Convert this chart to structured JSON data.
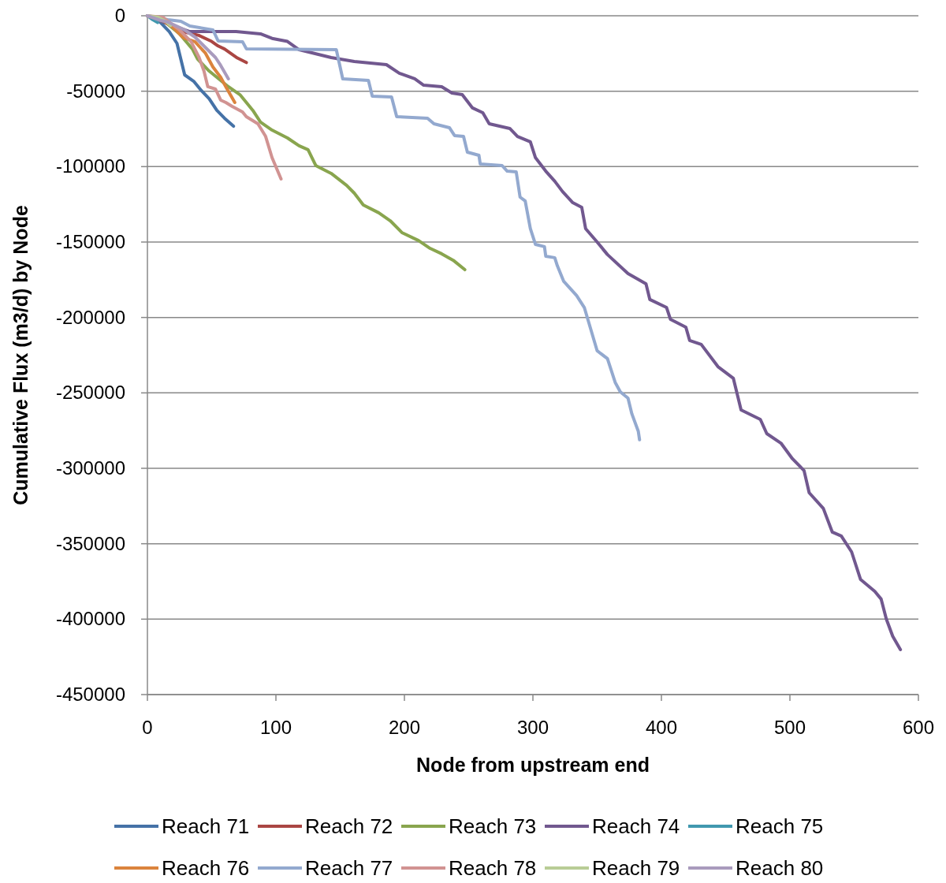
{
  "chart_data": {
    "type": "line",
    "xlabel": "Node from upstream end",
    "ylabel": "Cumulative Flux (m3/d) by Node",
    "xlim": [
      0,
      600
    ],
    "xticks": [
      0,
      100,
      200,
      300,
      400,
      500,
      600
    ],
    "ylim": [
      -450000,
      0
    ],
    "yticks": [
      -450000,
      -400000,
      -350000,
      -300000,
      -250000,
      -200000,
      -150000,
      -100000,
      -50000,
      0
    ],
    "grid": "y",
    "legend": "bottom",
    "marker": "none",
    "line_style": "solid",
    "series": [
      {
        "name": "Reach 71",
        "color": "#4572a7",
        "x": [
          0,
          8,
          17,
          23,
          26,
          29,
          36,
          42,
          48,
          54,
          60,
          67
        ],
        "values": [
          0,
          -2600,
          -10500,
          -18300,
          -28700,
          -39200,
          -43400,
          -49600,
          -54900,
          -62700,
          -67900,
          -73200
        ]
      },
      {
        "name": "Reach 72",
        "color": "#aa4643",
        "x": [
          0,
          10,
          20,
          30,
          40,
          50,
          55,
          60,
          65,
          70,
          77
        ],
        "values": [
          0,
          -3000,
          -7000,
          -11000,
          -13000,
          -17000,
          -20000,
          -22000,
          -25000,
          -28000,
          -31000
        ]
      },
      {
        "name": "Reach 73",
        "color": "#89a54e",
        "x": [
          0,
          15,
          25,
          35,
          39,
          48,
          63,
          72,
          82,
          88,
          97,
          109,
          118,
          125,
          131,
          143,
          155,
          161,
          168,
          180,
          189,
          198,
          211,
          220,
          229,
          238,
          247
        ],
        "values": [
          0,
          -5000,
          -12000,
          -22000,
          -28700,
          -36600,
          -47000,
          -52300,
          -62700,
          -70500,
          -75800,
          -81000,
          -86200,
          -88800,
          -99300,
          -104500,
          -112400,
          -117600,
          -125400,
          -130600,
          -135900,
          -143700,
          -149000,
          -154200,
          -157800,
          -162100,
          -168300
        ]
      },
      {
        "name": "Reach 74",
        "color": "#71588f",
        "x": [
          0,
          15,
          33,
          69,
          88,
          97,
          109,
          118,
          143,
          161,
          186,
          196,
          208,
          215,
          229,
          237,
          245,
          253,
          261,
          266,
          282,
          288,
          298,
          302,
          310,
          317,
          323,
          331,
          338,
          341,
          350,
          358,
          374,
          388,
          391,
          404,
          407,
          419,
          422,
          431,
          444,
          456,
          462,
          477,
          482,
          493,
          502,
          511,
          515,
          526,
          533,
          540,
          548,
          555,
          566,
          571,
          575,
          580,
          586
        ],
        "values": [
          0,
          -5000,
          -10500,
          -10500,
          -12000,
          -15000,
          -17000,
          -22500,
          -27700,
          -30300,
          -32400,
          -38100,
          -41800,
          -46000,
          -47000,
          -51200,
          -52300,
          -61100,
          -64300,
          -71600,
          -74700,
          -80000,
          -83600,
          -94100,
          -103000,
          -109700,
          -116500,
          -123900,
          -127000,
          -141100,
          -150000,
          -158300,
          -170900,
          -177700,
          -188100,
          -193400,
          -201200,
          -206400,
          -215300,
          -217900,
          -232600,
          -240400,
          -261300,
          -267600,
          -277000,
          -283300,
          -293700,
          -301500,
          -316200,
          -326600,
          -342300,
          -344900,
          -355400,
          -373700,
          -381500,
          -386700,
          -399800,
          -411300,
          -420200
        ]
      },
      {
        "name": "Reach 75",
        "color": "#4198af",
        "x": [
          0,
          4,
          8
        ],
        "values": [
          0,
          -2500,
          -4500
        ]
      },
      {
        "name": "Reach 76",
        "color": "#db843d",
        "x": [
          0,
          12,
          20,
          28,
          37,
          45,
          51,
          57,
          61,
          68
        ],
        "values": [
          0,
          -3000,
          -7800,
          -14600,
          -17200,
          -24600,
          -34000,
          -40800,
          -47000,
          -57500
        ]
      },
      {
        "name": "Reach 77",
        "color": "#93a9cf",
        "x": [
          0,
          16,
          26,
          33,
          51,
          55,
          74,
          77,
          147,
          152,
          172,
          175,
          190,
          194,
          218,
          223,
          235,
          239,
          246,
          249,
          258,
          259,
          276,
          280,
          287,
          290,
          294,
          298,
          302,
          309,
          310,
          317,
          319,
          324,
          334,
          340,
          350,
          358,
          364,
          368,
          374,
          377,
          382,
          383
        ],
        "values": [
          0,
          -2600,
          -3700,
          -6800,
          -9400,
          -16700,
          -17200,
          -21900,
          -22500,
          -41800,
          -42900,
          -53300,
          -53800,
          -66900,
          -67900,
          -71600,
          -74200,
          -79400,
          -80000,
          -90400,
          -92500,
          -98200,
          -99300,
          -103000,
          -103500,
          -120200,
          -122800,
          -141100,
          -151600,
          -153100,
          -159400,
          -160400,
          -165700,
          -176100,
          -185500,
          -193400,
          -222100,
          -227300,
          -243000,
          -249300,
          -253500,
          -263900,
          -275400,
          -281100
        ]
      },
      {
        "name": "Reach 78",
        "color": "#d19392",
        "x": [
          0,
          12,
          25,
          34,
          40,
          44,
          47,
          53,
          57,
          61,
          66,
          74,
          77,
          86,
          92,
          97,
          104
        ],
        "values": [
          0,
          -1000,
          -9400,
          -17200,
          -27200,
          -36600,
          -47000,
          -48600,
          -55900,
          -57500,
          -60100,
          -63800,
          -66900,
          -71600,
          -80000,
          -94100,
          -108200
        ]
      },
      {
        "name": "Reach 79",
        "color": "#b9cd96",
        "x": [
          0,
          8,
          14,
          18
        ],
        "values": [
          0,
          -1000,
          -3500,
          -6500
        ]
      },
      {
        "name": "Reach 80",
        "color": "#a99bbd",
        "x": [
          0,
          10,
          16,
          28,
          37,
          45,
          53,
          57,
          63
        ],
        "values": [
          0,
          -3000,
          -4200,
          -8900,
          -14100,
          -20900,
          -27700,
          -32900,
          -41800
        ]
      }
    ]
  }
}
